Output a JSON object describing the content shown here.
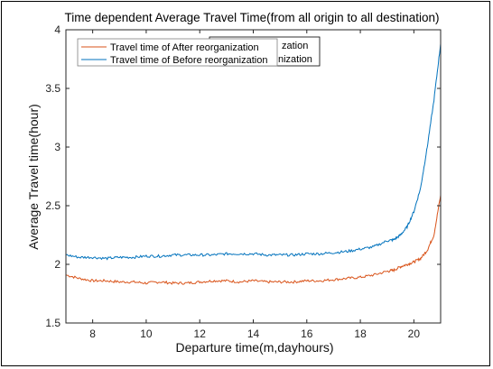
{
  "chart_data": {
    "type": "line",
    "title": "Time dependent Average Travel Time(from all origin to all destination)",
    "xlabel": "Departure time(m,dayhours)",
    "ylabel": "Average Travel time(hour)",
    "xlim": [
      7,
      21
    ],
    "ylim": [
      1.5,
      4
    ],
    "xticks": [
      "8",
      "10",
      "12",
      "14",
      "16",
      "18",
      "20"
    ],
    "yticks": [
      "1.5",
      "2",
      "2.5",
      "3",
      "3.5",
      "4"
    ],
    "grid": false,
    "legend_position": "top-left",
    "legend_ghost_texts": [
      "zation",
      "nization"
    ],
    "series": [
      {
        "name": "Travel time of After reorganization",
        "color": "#D95319",
        "x": [
          7,
          7.5,
          8,
          8.5,
          9,
          9.5,
          10,
          10.5,
          11,
          11.5,
          12,
          12.5,
          13,
          13.5,
          14,
          14.5,
          15,
          15.5,
          16,
          16.5,
          17,
          17.5,
          18,
          18.5,
          19,
          19.25,
          19.5,
          19.75,
          20,
          20.25,
          20.5,
          20.75,
          21
        ],
        "y": [
          1.91,
          1.88,
          1.86,
          1.86,
          1.85,
          1.85,
          1.84,
          1.85,
          1.84,
          1.84,
          1.85,
          1.86,
          1.86,
          1.85,
          1.86,
          1.85,
          1.85,
          1.85,
          1.86,
          1.86,
          1.87,
          1.88,
          1.89,
          1.91,
          1.94,
          1.95,
          1.98,
          2.0,
          2.02,
          2.05,
          2.12,
          2.25,
          2.59
        ]
      },
      {
        "name": "Travel time of Before reorganization",
        "color": "#0072BD",
        "x": [
          7,
          7.5,
          8,
          8.5,
          9,
          9.5,
          10,
          10.5,
          11,
          11.5,
          12,
          12.5,
          13,
          13.5,
          14,
          14.5,
          15,
          15.5,
          16,
          16.5,
          17,
          17.5,
          18,
          18.5,
          19,
          19.25,
          19.5,
          19.75,
          20,
          20.25,
          20.5,
          20.75,
          21
        ],
        "y": [
          2.08,
          2.06,
          2.06,
          2.05,
          2.06,
          2.06,
          2.07,
          2.07,
          2.08,
          2.08,
          2.08,
          2.08,
          2.09,
          2.09,
          2.09,
          2.08,
          2.08,
          2.08,
          2.09,
          2.09,
          2.1,
          2.11,
          2.13,
          2.15,
          2.2,
          2.21,
          2.25,
          2.32,
          2.45,
          2.65,
          3.0,
          3.4,
          3.88
        ]
      }
    ]
  }
}
